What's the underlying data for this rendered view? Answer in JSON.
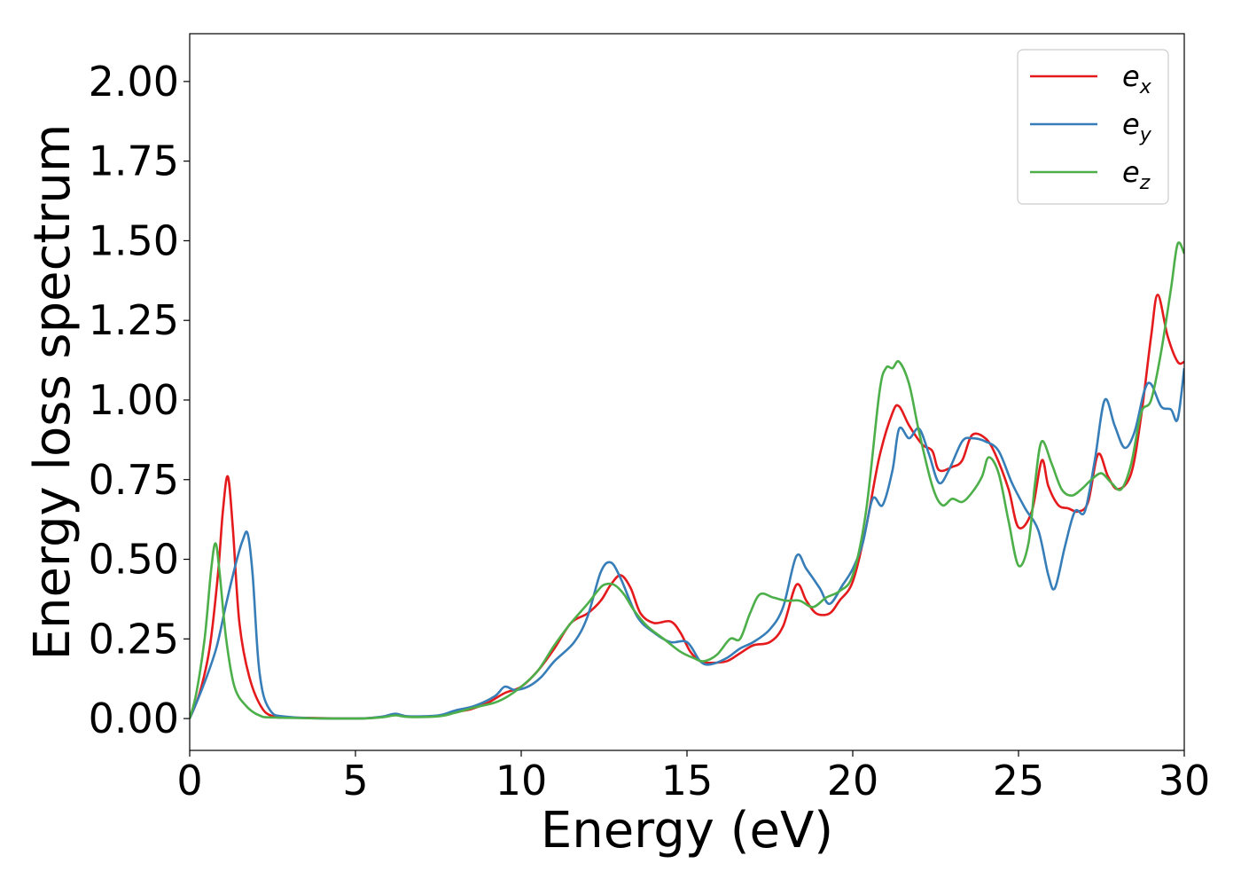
{
  "chart_data": {
    "type": "line",
    "xlabel": "Energy (eV)",
    "ylabel": "Energy loss spectrum",
    "xlim": [
      0,
      30
    ],
    "ylim": [
      -0.1,
      2.15
    ],
    "xticks": [
      0,
      5,
      10,
      15,
      20,
      25,
      30
    ],
    "xtick_labels": [
      "0",
      "5",
      "10",
      "15",
      "20",
      "25",
      "30"
    ],
    "yticks": [
      0.0,
      0.25,
      0.5,
      0.75,
      1.0,
      1.25,
      1.5,
      1.75,
      2.0
    ],
    "ytick_labels": [
      "0.00",
      "0.25",
      "0.50",
      "0.75",
      "1.00",
      "1.25",
      "1.50",
      "1.75",
      "2.00"
    ],
    "grid": false,
    "legend_position": "top-right",
    "series": [
      {
        "name": "e_x",
        "label_base": "e",
        "label_sub": "x",
        "color": "#e41a1c",
        "points": [
          [
            0,
            0
          ],
          [
            0.3,
            0.08
          ],
          [
            0.6,
            0.22
          ],
          [
            0.85,
            0.45
          ],
          [
            1.0,
            0.65
          ],
          [
            1.15,
            0.76
          ],
          [
            1.3,
            0.6
          ],
          [
            1.5,
            0.3
          ],
          [
            1.8,
            0.13
          ],
          [
            2.2,
            0.03
          ],
          [
            2.6,
            0.005
          ],
          [
            3,
            0.003
          ],
          [
            5,
            0.0
          ],
          [
            5.8,
            0.005
          ],
          [
            6.2,
            0.012
          ],
          [
            6.6,
            0.006
          ],
          [
            7.5,
            0.008
          ],
          [
            8,
            0.02
          ],
          [
            8.5,
            0.03
          ],
          [
            9,
            0.05
          ],
          [
            9.5,
            0.08
          ],
          [
            10,
            0.1
          ],
          [
            10.5,
            0.15
          ],
          [
            11,
            0.22
          ],
          [
            11.5,
            0.3
          ],
          [
            12,
            0.33
          ],
          [
            12.4,
            0.37
          ],
          [
            12.7,
            0.42
          ],
          [
            13.0,
            0.45
          ],
          [
            13.3,
            0.41
          ],
          [
            13.6,
            0.33
          ],
          [
            14.0,
            0.3
          ],
          [
            14.5,
            0.305
          ],
          [
            14.8,
            0.27
          ],
          [
            15.1,
            0.21
          ],
          [
            15.4,
            0.18
          ],
          [
            15.7,
            0.175
          ],
          [
            16.2,
            0.18
          ],
          [
            16.6,
            0.205
          ],
          [
            17.0,
            0.23
          ],
          [
            17.5,
            0.24
          ],
          [
            17.9,
            0.29
          ],
          [
            18.3,
            0.42
          ],
          [
            18.6,
            0.37
          ],
          [
            18.9,
            0.33
          ],
          [
            19.3,
            0.33
          ],
          [
            19.6,
            0.37
          ],
          [
            20.0,
            0.43
          ],
          [
            20.4,
            0.6
          ],
          [
            20.8,
            0.82
          ],
          [
            21.2,
            0.96
          ],
          [
            21.4,
            0.98
          ],
          [
            21.7,
            0.92
          ],
          [
            22.1,
            0.86
          ],
          [
            22.4,
            0.84
          ],
          [
            22.6,
            0.78
          ],
          [
            23.0,
            0.79
          ],
          [
            23.3,
            0.81
          ],
          [
            23.6,
            0.89
          ],
          [
            24.0,
            0.88
          ],
          [
            24.3,
            0.83
          ],
          [
            24.7,
            0.72
          ],
          [
            25.0,
            0.6
          ],
          [
            25.4,
            0.65
          ],
          [
            25.7,
            0.81
          ],
          [
            25.9,
            0.73
          ],
          [
            26.2,
            0.67
          ],
          [
            26.5,
            0.66
          ],
          [
            26.8,
            0.65
          ],
          [
            27.1,
            0.68
          ],
          [
            27.4,
            0.83
          ],
          [
            27.7,
            0.76
          ],
          [
            28.0,
            0.72
          ],
          [
            28.4,
            0.77
          ],
          [
            28.7,
            0.95
          ],
          [
            29.0,
            1.2
          ],
          [
            29.2,
            1.33
          ],
          [
            29.5,
            1.2
          ],
          [
            29.8,
            1.12
          ],
          [
            30.0,
            1.12
          ]
        ]
      },
      {
        "name": "e_y",
        "label_base": "e",
        "label_sub": "y",
        "color": "#377eb8",
        "points": [
          [
            0,
            0
          ],
          [
            0.4,
            0.1
          ],
          [
            0.8,
            0.22
          ],
          [
            1.1,
            0.36
          ],
          [
            1.4,
            0.49
          ],
          [
            1.6,
            0.56
          ],
          [
            1.75,
            0.58
          ],
          [
            1.9,
            0.45
          ],
          [
            2.1,
            0.15
          ],
          [
            2.4,
            0.03
          ],
          [
            3,
            0.005
          ],
          [
            5,
            0.0
          ],
          [
            5.8,
            0.006
          ],
          [
            6.2,
            0.015
          ],
          [
            6.6,
            0.007
          ],
          [
            7.5,
            0.01
          ],
          [
            8,
            0.025
          ],
          [
            8.6,
            0.04
          ],
          [
            9.2,
            0.07
          ],
          [
            9.5,
            0.1
          ],
          [
            9.8,
            0.09
          ],
          [
            10.2,
            0.1
          ],
          [
            10.6,
            0.13
          ],
          [
            11,
            0.18
          ],
          [
            11.6,
            0.24
          ],
          [
            12.0,
            0.32
          ],
          [
            12.4,
            0.46
          ],
          [
            12.7,
            0.49
          ],
          [
            13.0,
            0.44
          ],
          [
            13.5,
            0.32
          ],
          [
            14.0,
            0.27
          ],
          [
            14.5,
            0.24
          ],
          [
            15.0,
            0.24
          ],
          [
            15.4,
            0.18
          ],
          [
            15.7,
            0.17
          ],
          [
            16.2,
            0.19
          ],
          [
            16.6,
            0.22
          ],
          [
            17.0,
            0.24
          ],
          [
            17.5,
            0.28
          ],
          [
            17.9,
            0.35
          ],
          [
            18.3,
            0.51
          ],
          [
            18.6,
            0.47
          ],
          [
            19.0,
            0.41
          ],
          [
            19.3,
            0.36
          ],
          [
            19.7,
            0.42
          ],
          [
            20.0,
            0.47
          ],
          [
            20.3,
            0.55
          ],
          [
            20.6,
            0.69
          ],
          [
            20.9,
            0.67
          ],
          [
            21.2,
            0.78
          ],
          [
            21.4,
            0.91
          ],
          [
            21.7,
            0.88
          ],
          [
            22.0,
            0.91
          ],
          [
            22.3,
            0.83
          ],
          [
            22.6,
            0.74
          ],
          [
            22.9,
            0.78
          ],
          [
            23.3,
            0.87
          ],
          [
            23.6,
            0.88
          ],
          [
            24.0,
            0.87
          ],
          [
            24.4,
            0.84
          ],
          [
            24.8,
            0.74
          ],
          [
            25.2,
            0.66
          ],
          [
            25.6,
            0.59
          ],
          [
            25.9,
            0.45
          ],
          [
            26.1,
            0.41
          ],
          [
            26.4,
            0.54
          ],
          [
            26.7,
            0.65
          ],
          [
            27.0,
            0.65
          ],
          [
            27.3,
            0.81
          ],
          [
            27.6,
            1.0
          ],
          [
            27.9,
            0.92
          ],
          [
            28.2,
            0.85
          ],
          [
            28.5,
            0.9
          ],
          [
            28.8,
            1.03
          ],
          [
            29.0,
            1.05
          ],
          [
            29.3,
            0.98
          ],
          [
            29.6,
            0.97
          ],
          [
            29.8,
            0.94
          ],
          [
            30.0,
            1.1
          ]
        ]
      },
      {
        "name": "e_z",
        "label_base": "e",
        "label_sub": "z",
        "color": "#4daf4a",
        "points": [
          [
            0,
            0
          ],
          [
            0.2,
            0.08
          ],
          [
            0.45,
            0.25
          ],
          [
            0.65,
            0.47
          ],
          [
            0.78,
            0.55
          ],
          [
            0.9,
            0.46
          ],
          [
            1.1,
            0.25
          ],
          [
            1.35,
            0.1
          ],
          [
            1.7,
            0.04
          ],
          [
            2.1,
            0.01
          ],
          [
            2.6,
            0.003
          ],
          [
            5,
            0.0
          ],
          [
            5.8,
            0.004
          ],
          [
            6.2,
            0.01
          ],
          [
            6.6,
            0.005
          ],
          [
            7.5,
            0.007
          ],
          [
            8,
            0.018
          ],
          [
            8.6,
            0.035
          ],
          [
            9.2,
            0.05
          ],
          [
            9.6,
            0.07
          ],
          [
            10.0,
            0.1
          ],
          [
            10.5,
            0.15
          ],
          [
            11.0,
            0.23
          ],
          [
            11.5,
            0.3
          ],
          [
            12.0,
            0.36
          ],
          [
            12.3,
            0.4
          ],
          [
            12.5,
            0.42
          ],
          [
            12.8,
            0.42
          ],
          [
            13.1,
            0.39
          ],
          [
            13.4,
            0.34
          ],
          [
            13.8,
            0.29
          ],
          [
            14.3,
            0.25
          ],
          [
            14.8,
            0.21
          ],
          [
            15.2,
            0.19
          ],
          [
            15.5,
            0.18
          ],
          [
            15.9,
            0.2
          ],
          [
            16.3,
            0.25
          ],
          [
            16.6,
            0.25
          ],
          [
            16.9,
            0.33
          ],
          [
            17.2,
            0.39
          ],
          [
            17.6,
            0.38
          ],
          [
            18.0,
            0.37
          ],
          [
            18.4,
            0.37
          ],
          [
            18.8,
            0.35
          ],
          [
            19.2,
            0.38
          ],
          [
            19.6,
            0.4
          ],
          [
            20.0,
            0.45
          ],
          [
            20.4,
            0.65
          ],
          [
            20.8,
            1.02
          ],
          [
            21.0,
            1.1
          ],
          [
            21.2,
            1.1
          ],
          [
            21.4,
            1.12
          ],
          [
            21.7,
            1.05
          ],
          [
            22.0,
            0.9
          ],
          [
            22.4,
            0.73
          ],
          [
            22.7,
            0.67
          ],
          [
            23.0,
            0.69
          ],
          [
            23.3,
            0.68
          ],
          [
            23.6,
            0.71
          ],
          [
            23.9,
            0.76
          ],
          [
            24.1,
            0.82
          ],
          [
            24.4,
            0.77
          ],
          [
            24.7,
            0.62
          ],
          [
            25.0,
            0.48
          ],
          [
            25.3,
            0.55
          ],
          [
            25.5,
            0.74
          ],
          [
            25.7,
            0.87
          ],
          [
            26.0,
            0.8
          ],
          [
            26.3,
            0.72
          ],
          [
            26.6,
            0.7
          ],
          [
            26.9,
            0.72
          ],
          [
            27.2,
            0.75
          ],
          [
            27.5,
            0.77
          ],
          [
            27.8,
            0.74
          ],
          [
            28.1,
            0.72
          ],
          [
            28.4,
            0.8
          ],
          [
            28.7,
            0.96
          ],
          [
            29.0,
            1.0
          ],
          [
            29.3,
            1.15
          ],
          [
            29.6,
            1.35
          ],
          [
            29.8,
            1.49
          ],
          [
            30.0,
            1.46
          ]
        ]
      }
    ]
  }
}
